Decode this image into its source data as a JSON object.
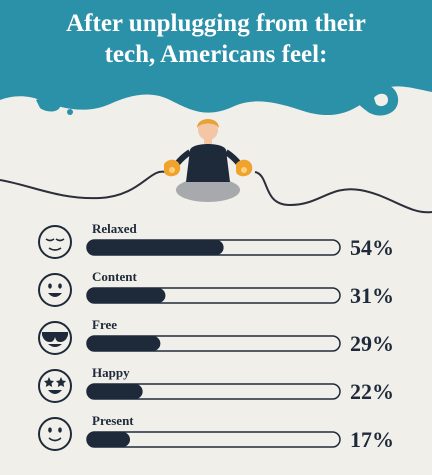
{
  "chart_data": {
    "type": "bar",
    "orientation": "horizontal",
    "title": "After unplugging from their tech, Americans feel:",
    "categories": [
      "Relaxed",
      "Content",
      "Free",
      "Happy",
      "Present"
    ],
    "values": [
      54,
      31,
      29,
      22,
      17
    ],
    "value_labels": [
      "54%",
      "31%",
      "29%",
      "22%",
      "17%"
    ],
    "color": "#1e2a3a",
    "xlim": [
      0,
      100
    ]
  }
}
